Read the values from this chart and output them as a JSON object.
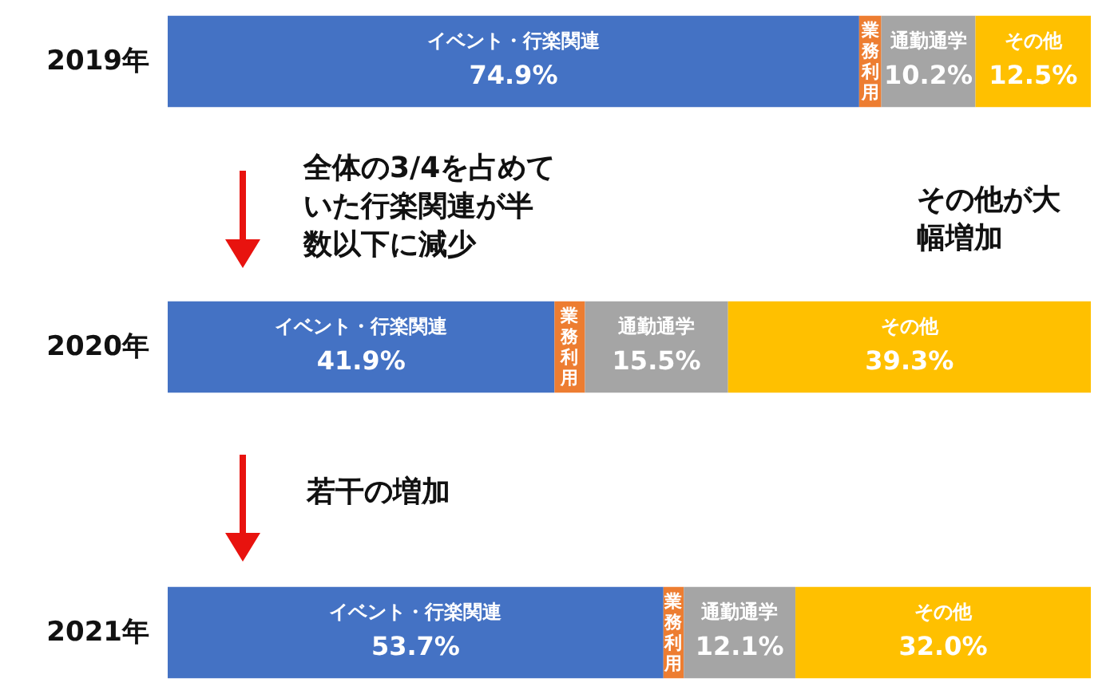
{
  "chart_data": {
    "type": "bar",
    "orientation": "horizontal",
    "stacked": true,
    "tick_labels": "y",
    "categories": [
      "2019年",
      "2020年",
      "2021年"
    ],
    "series": [
      {
        "name": "イベント・行楽関連",
        "color": "#4472c4",
        "values": [
          74.9,
          41.9,
          53.7
        ],
        "value_labels": [
          "74.9%",
          "41.9%",
          "53.7%"
        ]
      },
      {
        "name": "業務利用",
        "color": "#ed7d31",
        "values": [
          2.4,
          3.3,
          2.2
        ],
        "value_labels": [
          null,
          null,
          null
        ]
      },
      {
        "name": "通勤通学",
        "color": "#a5a5a5",
        "values": [
          10.2,
          15.5,
          12.1
        ],
        "value_labels": [
          "10.2%",
          "15.5%",
          "12.1%"
        ]
      },
      {
        "name": "その他",
        "color": "#ffc000",
        "values": [
          12.5,
          39.3,
          32.0
        ],
        "value_labels": [
          "12.5%",
          "39.3%",
          "32.0%"
        ]
      }
    ],
    "annotations": [
      "全体の3/4を占めていた行楽関連が半数以下に減少",
      "その他が大幅増加",
      "若干の増加"
    ]
  }
}
